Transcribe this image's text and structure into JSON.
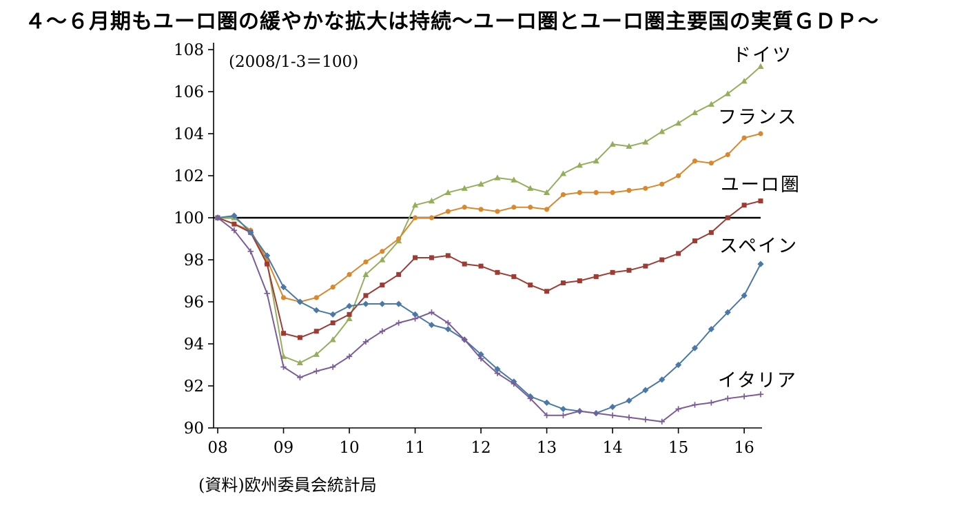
{
  "page": {
    "title": "４～６月期もユーロ圏の緩やかな拡大は持続～ユーロ圏とユーロ圏主要国の実質ＧＤＰ～",
    "source_note": "(資料)欧州委員会統計局"
  },
  "chart_data": {
    "type": "line",
    "title": "４～６月期もユーロ圏の緩やかな拡大は持続～ユーロ圏とユーロ圏主要国の実質ＧＤＰ～",
    "annotation": "(2008/1-3＝100)",
    "source": "(資料)欧州委員会統計局",
    "grid": false,
    "legend_position": "right-of-line-ends",
    "xlim": [
      2008.0,
      2016.25
    ],
    "ylim": [
      90,
      108
    ],
    "x_start": 2008.0,
    "x_step": 0.25,
    "x_unit": "year-quarter",
    "y_ticks": [
      90,
      92,
      94,
      96,
      98,
      100,
      102,
      104,
      106,
      108
    ],
    "x_ticks": [
      {
        "value": 2008,
        "label": "08"
      },
      {
        "value": 2009,
        "label": "09"
      },
      {
        "value": 2010,
        "label": "10"
      },
      {
        "value": 2011,
        "label": "11"
      },
      {
        "value": 2012,
        "label": "12"
      },
      {
        "value": 2013,
        "label": "13"
      },
      {
        "value": 2014,
        "label": "14"
      },
      {
        "value": 2015,
        "label": "15"
      },
      {
        "value": 2016,
        "label": "16"
      }
    ],
    "reference_line": {
      "y": 100,
      "color": "#000000"
    },
    "axis_color": "#000000",
    "series": [
      {
        "name": "ドイツ",
        "color": "#94AF5B",
        "marker": "triangle",
        "values": [
          100.0,
          100.0,
          99.4,
          97.9,
          93.4,
          93.1,
          93.5,
          94.2,
          95.2,
          97.3,
          98.0,
          98.9,
          100.6,
          100.8,
          101.2,
          101.4,
          101.6,
          101.9,
          101.8,
          101.4,
          101.2,
          102.1,
          102.5,
          102.7,
          103.5,
          103.4,
          103.6,
          104.1,
          104.5,
          105.0,
          105.4,
          105.9,
          106.5,
          107.2
        ]
      },
      {
        "name": "フランス",
        "color": "#D9882D",
        "marker": "circle",
        "values": [
          100.0,
          99.7,
          99.4,
          98.0,
          96.2,
          96.0,
          96.2,
          96.7,
          97.3,
          97.9,
          98.4,
          99.0,
          100.0,
          100.0,
          100.3,
          100.5,
          100.4,
          100.3,
          100.5,
          100.5,
          100.4,
          101.1,
          101.2,
          101.2,
          101.2,
          101.3,
          101.4,
          101.6,
          102.0,
          102.7,
          102.6,
          103.0,
          103.8,
          104.0
        ]
      },
      {
        "name": "ユーロ圏",
        "color": "#9E3B33",
        "marker": "square",
        "values": [
          100.0,
          99.7,
          99.3,
          97.8,
          94.5,
          94.3,
          94.6,
          95.0,
          95.4,
          96.3,
          96.8,
          97.3,
          98.1,
          98.1,
          98.2,
          97.8,
          97.7,
          97.4,
          97.2,
          96.8,
          96.5,
          96.9,
          97.0,
          97.2,
          97.4,
          97.5,
          97.7,
          98.0,
          98.3,
          98.9,
          99.3,
          100.0,
          100.6,
          100.8
        ]
      },
      {
        "name": "スペイン",
        "color": "#4A79A8",
        "marker": "diamond",
        "values": [
          100.0,
          100.1,
          99.3,
          98.2,
          96.7,
          96.0,
          95.6,
          95.4,
          95.8,
          95.9,
          95.9,
          95.9,
          95.4,
          94.9,
          94.7,
          94.2,
          93.5,
          92.8,
          92.2,
          91.5,
          91.2,
          90.9,
          90.8,
          90.7,
          91.0,
          91.3,
          91.8,
          92.3,
          93.0,
          93.8,
          94.7,
          95.5,
          96.3,
          97.8
        ]
      },
      {
        "name": "イタリア",
        "color": "#7B5C97",
        "marker": "plus",
        "values": [
          100.0,
          99.4,
          98.4,
          96.4,
          92.9,
          92.4,
          92.7,
          92.9,
          93.4,
          94.1,
          94.6,
          95.0,
          95.2,
          95.5,
          95.0,
          94.2,
          93.3,
          92.6,
          92.1,
          91.4,
          90.6,
          90.6,
          90.8,
          90.7,
          90.6,
          90.5,
          90.4,
          90.3,
          90.9,
          91.1,
          91.2,
          91.4,
          91.5,
          91.6
        ]
      }
    ]
  }
}
